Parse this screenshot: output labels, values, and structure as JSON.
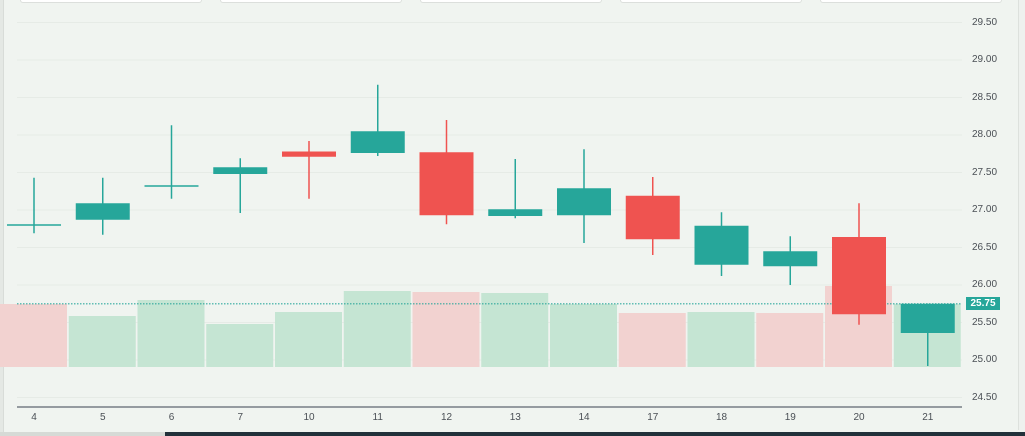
{
  "chart_data": {
    "type": "candlestick",
    "title": "",
    "xlabel": "",
    "ylabel": "",
    "ylim": [
      24.5,
      29.5
    ],
    "y_ticks": [
      "29.50",
      "29.00",
      "28.50",
      "28.00",
      "27.50",
      "27.00",
      "26.50",
      "26.00",
      "25.50",
      "25.00",
      "24.50"
    ],
    "categories": [
      "4",
      "5",
      "6",
      "7",
      "10",
      "11",
      "12",
      "13",
      "14",
      "17",
      "18",
      "19",
      "20",
      "21"
    ],
    "open": [
      26.81,
      26.87,
      27.33,
      27.48,
      27.78,
      27.76,
      27.77,
      26.92,
      26.93,
      27.19,
      26.27,
      26.25,
      26.64,
      25.36
    ],
    "high": [
      27.43,
      27.43,
      28.13,
      27.69,
      27.92,
      28.67,
      28.2,
      27.68,
      27.81,
      27.44,
      26.97,
      26.65,
      27.09,
      25.75
    ],
    "low": [
      26.69,
      26.67,
      27.15,
      26.96,
      27.15,
      27.72,
      26.81,
      26.89,
      26.56,
      26.4,
      26.12,
      26.0,
      25.47,
      24.92
    ],
    "close": [
      26.81,
      27.09,
      27.33,
      27.57,
      27.71,
      28.05,
      26.93,
      27.01,
      27.29,
      26.61,
      26.79,
      26.45,
      25.61,
      25.75
    ],
    "volume_relative": [
      63,
      51,
      67,
      43,
      55,
      76,
      75,
      74,
      63,
      54,
      55,
      54,
      81,
      63
    ],
    "volume_up": [
      false,
      true,
      true,
      true,
      true,
      true,
      false,
      true,
      true,
      false,
      true,
      false,
      false,
      true
    ],
    "last_price": "25.75",
    "grid": true,
    "legend": "none",
    "colors": {
      "up": "#26a69a",
      "down": "#ef5350",
      "vol_up": "#c5e5d3",
      "vol_down": "#f2d2d0",
      "background": "#f0f4f0"
    }
  },
  "axis": {
    "price_tag": "25.75"
  }
}
